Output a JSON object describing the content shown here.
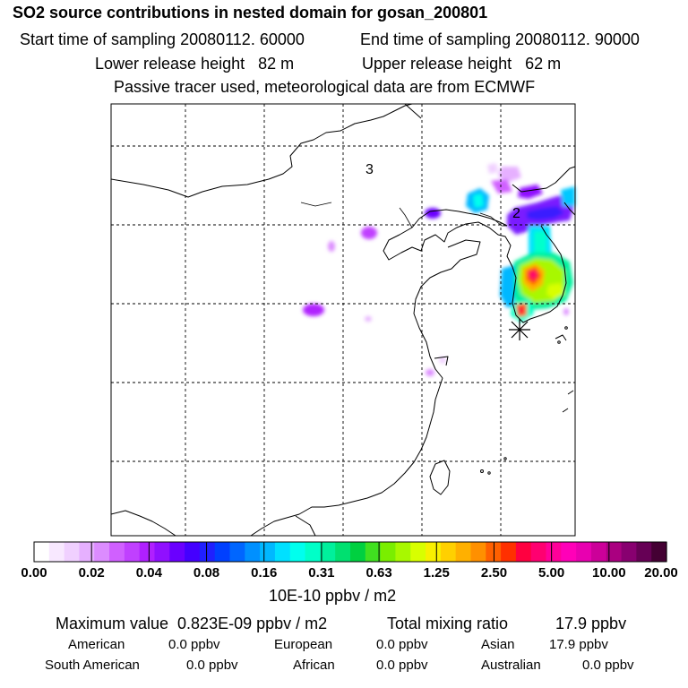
{
  "header": {
    "title": "SO2 source contributions in nested domain for gosan_200801",
    "start_label": "Start time of sampling 20080112. 60000",
    "end_label": "End time of sampling 20080112. 90000",
    "lower_label": "Lower release height   82 m",
    "upper_label": "Upper release height   62 m",
    "tracer_note": "Passive tracer used, meteorological data are from ECMWF"
  },
  "map": {
    "region_labels": [
      "3",
      "2"
    ],
    "receptor_marker": "asterisk"
  },
  "colorbar": {
    "tick_labels": [
      "0.00",
      "0.02",
      "0.04",
      "0.08",
      "0.16",
      "0.31",
      "0.63",
      "1.25",
      "2.50",
      "5.00",
      "10.00",
      "20.00"
    ],
    "unit": "10E-10 ppbv / m2",
    "colors": [
      "#ffffff",
      "#f8e8ff",
      "#f0d0ff",
      "#e6b0ff",
      "#dc8cff",
      "#d060ff",
      "#c040ff",
      "#b020ff",
      "#9010ff",
      "#6a00ff",
      "#4400ff",
      "#2020ff",
      "#0040ff",
      "#0066ff",
      "#0090ff",
      "#00b8ff",
      "#00e0ff",
      "#00ffee",
      "#00ffc8",
      "#00f09c",
      "#00e070",
      "#00d040",
      "#40e020",
      "#7aee00",
      "#a8f800",
      "#d8ff00",
      "#f8f000",
      "#ffd000",
      "#ffb000",
      "#ff9000",
      "#ff6000",
      "#ff3000",
      "#ff0040",
      "#ff0070",
      "#ff0099",
      "#ff00b8",
      "#e800b0",
      "#cc0099",
      "#aa0080",
      "#880070",
      "#660055",
      "#440033"
    ]
  },
  "stats": {
    "max_label": "Maximum value  0.823E-09 ppbv / m2",
    "total_label": "Total mixing ratio",
    "total_value": "17.9 ppbv",
    "regions": [
      {
        "name": "American",
        "value": "0.0 ppbv"
      },
      {
        "name": "European",
        "value": "0.0 ppbv"
      },
      {
        "name": "Asian",
        "value": "17.9 ppbv"
      },
      {
        "name": "South American",
        "value": "0.0 ppbv"
      },
      {
        "name": "African",
        "value": "0.0 ppbv"
      },
      {
        "name": "Australian",
        "value": "0.0 ppbv"
      }
    ]
  },
  "chart_data": {
    "type": "heatmap",
    "title": "SO2 source contributions in nested domain for gosan_200801",
    "color_scale_breaks": [
      0.0,
      0.02,
      0.04,
      0.08,
      0.16,
      0.31,
      0.63,
      1.25,
      2.5,
      5.0,
      10.0,
      20.0
    ],
    "color_scale_unit": "10E-10 ppbv / m2",
    "maximum_value": "0.823E-09 ppbv / m2",
    "total_mixing_ratio": "17.9 ppbv",
    "grid": true
  }
}
